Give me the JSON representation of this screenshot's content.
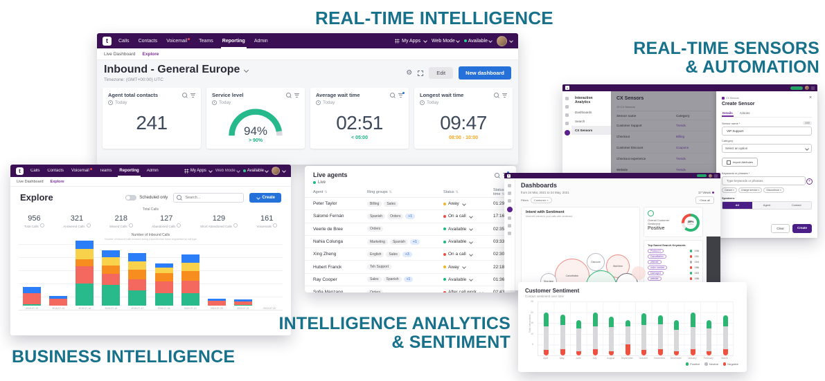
{
  "colors": {
    "purple_nav": "#3b0f54",
    "accent_purple": "#6f2b9c",
    "blue": "#2670d9",
    "teal_headline": "#17718a",
    "green": "#25b98b",
    "positive": "#2bb673",
    "negative": "#f0513f",
    "neutral": "#d8d8db"
  },
  "headlines": {
    "real_time_intelligence": "REAL-TIME INTELLIGENCE",
    "sensors_line1": "REAL-TIME SENSORS",
    "sensors_line2": "& AUTOMATION",
    "business_intelligence": "BUSINESS INTELLIGENCE",
    "analytics_line1": "INTELLIGENCE ANALYTICS",
    "analytics_line2": "& SENTIMENT"
  },
  "nav": {
    "logo": "t",
    "items": [
      {
        "label": "Calls"
      },
      {
        "label": "Contacts"
      },
      {
        "label": "Voicemail",
        "badge": true
      },
      {
        "label": "Teams"
      },
      {
        "label": "Reporting",
        "active": true
      },
      {
        "label": "Admin"
      }
    ],
    "my_apps": "My Apps",
    "web_mode": "Web Mode",
    "availability": "Available",
    "subnav": [
      {
        "label": "Live Dashboard"
      },
      {
        "label": "Explore",
        "active": true
      }
    ]
  },
  "main_dashboard": {
    "title": "Inbound - General Europe",
    "timezone": "Timezone: (GMT+00:00) UTC",
    "edit_label": "Edit",
    "new_dashboard_label": "New dashboard",
    "kpis": [
      {
        "title": "Agent total contacts",
        "period": "Today",
        "value": "241",
        "type": "number"
      },
      {
        "title": "Service level",
        "period": "Today",
        "value": "94%",
        "target": "> 90%",
        "target_color": "#15b082",
        "type": "gauge",
        "gauge_percent": 94
      },
      {
        "title": "Average wait time",
        "period": "Today",
        "value": "02:51",
        "target": "< 05:00",
        "target_color": "#15b082",
        "type": "number",
        "filter_dot": true
      },
      {
        "title": "Longest wait time",
        "period": "Today",
        "value": "09:47",
        "target": "08:00 - 10:00",
        "target_color": "#f2a51c",
        "type": "number"
      }
    ]
  },
  "explore": {
    "title": "Explore",
    "scheduled_only_label": "Scheduled only",
    "search_placeholder": "Search...",
    "create_label": "Create",
    "group_label": "Total Calls",
    "stats": [
      {
        "value": "956",
        "label": "Total Calls"
      },
      {
        "value": "321",
        "label": "Answered Calls"
      },
      {
        "value": "218",
        "label": "Missed Calls"
      },
      {
        "value": "127",
        "label": "Abandoned Calls"
      },
      {
        "value": "129",
        "label": "Short Abandoned Calls"
      },
      {
        "value": "161",
        "label": "Voicemails"
      }
    ],
    "chart_data": {
      "type": "bar-stacked",
      "title": "Number of Inbound Calls",
      "subtitle": "Number of inbound calls received during a specific time frame segmented by call type",
      "x": [
        "2019-07-13",
        "2019-07-14",
        "2019-07-15",
        "2019-07-16",
        "2019-07-17",
        "2019-07-18",
        "2019-07-19",
        "2019-07-20",
        "2019-07-21",
        "2019-07-22"
      ],
      "series": [
        {
          "name": "Answered",
          "color": "#28ba8b",
          "values": [
            2,
            0,
            32,
            30,
            22,
            18,
            18,
            0,
            1,
            0
          ]
        },
        {
          "name": "Missed",
          "color": "#f4695f",
          "values": [
            16,
            10,
            25,
            16,
            16,
            17,
            18,
            7,
            5,
            0
          ]
        },
        {
          "name": "Abandoned",
          "color": "#f78d1e",
          "values": [
            0,
            0,
            10,
            12,
            14,
            12,
            14,
            0,
            0,
            0
          ]
        },
        {
          "name": "Short Abandoned",
          "color": "#f8d24b",
          "values": [
            0,
            0,
            15,
            12,
            12,
            8,
            12,
            0,
            0,
            0
          ]
        },
        {
          "name": "Voicemail",
          "color": "#2c7ef8",
          "values": [
            9,
            4,
            12,
            10,
            12,
            6,
            12,
            3,
            3,
            0
          ]
        }
      ]
    }
  },
  "live_agents": {
    "title": "Live agents",
    "live_label": "Live",
    "columns": [
      "Agent",
      "Ring groups",
      "Status",
      "Status time"
    ],
    "status_colors": {
      "Away": "#f0b429",
      "On a call": "#ef4b43",
      "Available": "#1cb97e",
      "After call work": "#ef4b43"
    },
    "rows": [
      {
        "name": "Peter Taylor",
        "groups": [
          "Billing",
          "Sales"
        ],
        "extra": null,
        "status": "Away",
        "time": "01:29"
      },
      {
        "name": "Salomé Fernán",
        "groups": [
          "Spanish",
          "Orders"
        ],
        "extra": "+1",
        "status": "On a call",
        "time": "17:16"
      },
      {
        "name": "Veerle de Bree",
        "groups": [
          "Orders"
        ],
        "extra": null,
        "status": "Available",
        "time": "02:35:54"
      },
      {
        "name": "Nahia Colunga",
        "groups": [
          "Marketing",
          "Spanish"
        ],
        "extra": "+1",
        "status": "Available",
        "time": "03:33"
      },
      {
        "name": "Xing Zheng",
        "groups": [
          "English",
          "Sales"
        ],
        "extra": "+3",
        "status": "On a call",
        "time": "02:30:10"
      },
      {
        "name": "Hubert Franck",
        "groups": [
          "Teh Support"
        ],
        "extra": null,
        "status": "Away",
        "time": "22:18"
      },
      {
        "name": "Ray Cooper",
        "groups": [
          "Sales",
          "Spanish"
        ],
        "extra": "+1",
        "status": "Available",
        "time": "01:36"
      },
      {
        "name": "Sofia Manzano",
        "groups": [
          "Orders"
        ],
        "extra": null,
        "status": "After call work",
        "time": "02:43"
      },
      {
        "name": "Tongbang Jun-Seo",
        "groups": [
          "Sales",
          "Spanish"
        ],
        "extra": "+1",
        "status": "On a call",
        "time": "15:20"
      }
    ]
  },
  "cx": {
    "sidebar_title": "Interaction Analytics",
    "sidebar_items": [
      "Dashboards",
      "Search",
      "CX Sensors"
    ],
    "active_item": "CX Sensors",
    "title": "CX Sensors",
    "count": "10 CX Sensors",
    "columns": [
      "Sensor name",
      "Category"
    ],
    "rows": [
      {
        "name": "Customer Support",
        "category": "Trends"
      },
      {
        "name": "Checkout",
        "category": "Billing"
      },
      {
        "name": "Customer Discount",
        "category": "Coupons"
      },
      {
        "name": "Checkout experience",
        "category": "Trends"
      },
      {
        "name": "Website",
        "category": "Trends"
      }
    ],
    "drawer": {
      "breadcrumb": "CX Sensors",
      "title": "Create Sensor",
      "tabs": [
        "Details",
        "Actions"
      ],
      "active_tab": "Details",
      "sensor_name_label": "Sensor name *",
      "char_count": "0/50",
      "sensor_name_value": "VIP Support",
      "category_label": "Category",
      "category_placeholder": "Select an option",
      "import_label": "Import Attributes",
      "keywords_label": "Keywords or phrases *",
      "keywords_placeholder": "Type keywords or phrases",
      "chips": [
        "Cancel",
        "Charge service",
        "Discontinue"
      ],
      "speakers_label": "Speakers:",
      "speaker_options": [
        "All",
        "Agent",
        "Contact"
      ],
      "active_speaker": "All",
      "clear_label": "Clear",
      "create_label": "Create"
    }
  },
  "dashboards": {
    "title": "Dashboards",
    "date_range": "from 24 Mar, 2021 to 24 May, 2021",
    "views_label": "17 Views",
    "filters_label": "Filters",
    "filter_chip": "Customer ×",
    "clear_all_label": "Clear all",
    "intent_card": {
      "title": "Intent with Sentiment",
      "subtitle": "Most felt intents in your calls with sentiment",
      "bubbles": [
        {
          "label": "Cancellation",
          "sentiment": "negative",
          "x": 72,
          "y": 84,
          "r": 24
        },
        {
          "label": "Discount",
          "sentiment": "neutral",
          "x": 106,
          "y": 64,
          "r": 12
        },
        {
          "label": "Wait time",
          "sentiment": "negative",
          "x": 138,
          "y": 70,
          "r": 16
        },
        {
          "label": "Feedback",
          "sentiment": "positive",
          "x": 114,
          "y": 98,
          "r": 21
        },
        {
          "label": "Late orders",
          "sentiment": "neutral-dark",
          "x": 151,
          "y": 96,
          "r": 15
        },
        {
          "label": "Ship time",
          "sentiment": "neutral",
          "x": 38,
          "y": 92,
          "r": 11
        },
        {
          "label": "Pricing",
          "sentiment": "positive",
          "x": 72,
          "y": 116,
          "r": 15
        },
        {
          "label": "Claims",
          "sentiment": "positive-light",
          "x": 127,
          "y": 122,
          "r": 11
        },
        {
          "label": "Discount",
          "sentiment": "neutral",
          "x": 157,
          "y": 122,
          "r": 10
        },
        {
          "label": "Damage",
          "sentiment": "positive",
          "x": 100,
          "y": 131,
          "r": 13
        },
        {
          "label": "Storage",
          "sentiment": "neutral",
          "x": 68,
          "y": 142,
          "r": 10
        },
        {
          "label": "",
          "sentiment": "faint-pink",
          "x": 168,
          "y": 80,
          "r": 9
        },
        {
          "label": "",
          "sentiment": "faint-green",
          "x": 36,
          "y": 118,
          "r": 8
        }
      ]
    },
    "sentiment_card": {
      "title": "Overall Customer Sentiment",
      "value": "Positive",
      "pct": "49%",
      "pct_label": "Positive"
    },
    "keywords_card": {
      "title": "Top Saved Search Keywords",
      "rows": [
        {
          "keyword": "Product X",
          "count": "196",
          "tone": "#2bb673"
        },
        {
          "keyword": "Cancellation",
          "count": "151",
          "tone": "#ef4b3e"
        },
        {
          "keyword": "website",
          "count": "154",
          "tone": "#aab0b6"
        },
        {
          "keyword": "order number",
          "count": "186",
          "tone": "#ef4b3e"
        },
        {
          "keyword": "Damaged",
          "count": "163",
          "tone": "#2bb673"
        },
        {
          "keyword": "website",
          "count": "156",
          "tone": "#ef4b3e"
        },
        {
          "keyword": "order number",
          "count": "117",
          "tone": "#2bb673"
        },
        {
          "keyword": "order total",
          "count": "11",
          "tone": "#2bb673"
        }
      ]
    }
  },
  "sentiment": {
    "title": "Customer Sentiment",
    "subtitle": "Contact sentiment over time",
    "ylabel": "Total interactions",
    "legend": [
      {
        "label": "Positive",
        "color": "#2bb673"
      },
      {
        "label": "Neutral",
        "color": "#b9bdc3"
      },
      {
        "label": "Negative",
        "color": "#f0513f"
      }
    ],
    "chart_data": {
      "type": "stacked-pill-bar",
      "months": [
        "April",
        "May",
        "June",
        "July",
        "August",
        "September",
        "October",
        "November",
        "December",
        "January",
        "February",
        "March"
      ],
      "totals": [
        20,
        19,
        16.5,
        20,
        18,
        16.5,
        19.5,
        18.5,
        16.5,
        20,
        16.5,
        18.5
      ],
      "positive": [
        6.5,
        5,
        4,
        6.5,
        5,
        3,
        5.5,
        4,
        4.5,
        7,
        4,
        5
      ],
      "negative": [
        2.5,
        3,
        2,
        3,
        2,
        5,
        2.5,
        3,
        2,
        3,
        2,
        3
      ],
      "ylim": [
        0,
        25
      ],
      "yticks": [
        5,
        10,
        15,
        20,
        25
      ]
    }
  }
}
